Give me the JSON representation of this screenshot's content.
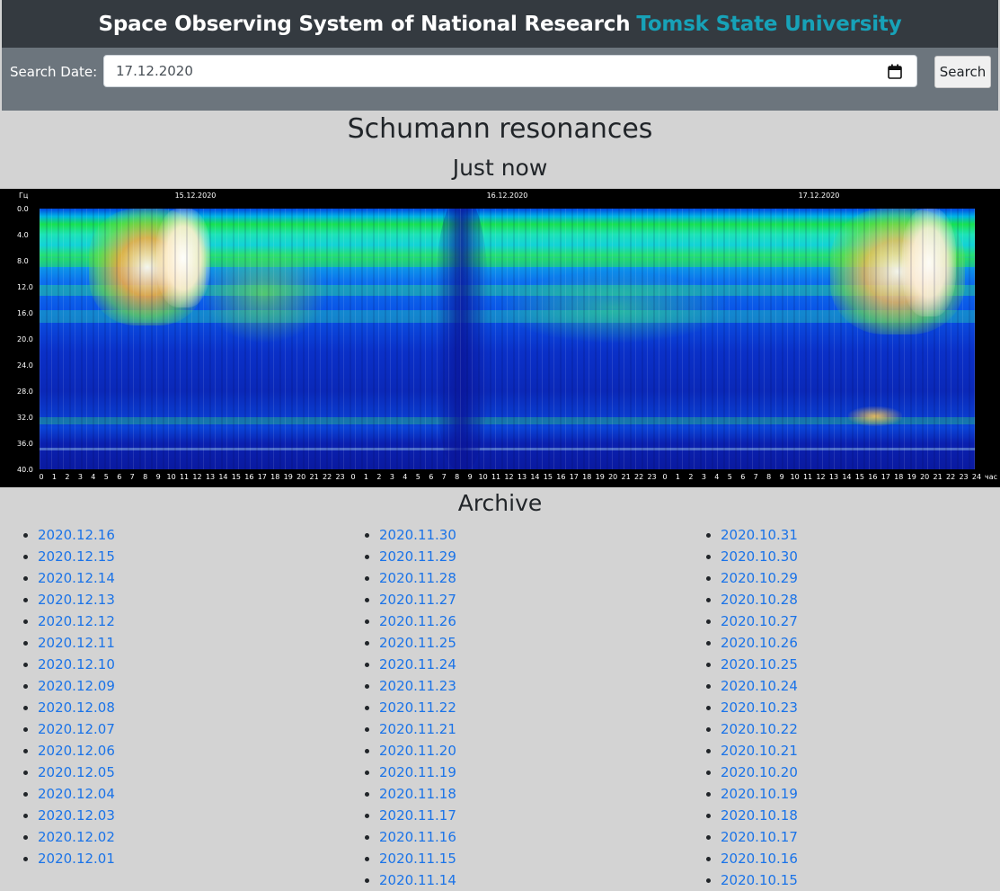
{
  "header": {
    "title_main": "Space Observing System of National Research",
    "title_accent": "Tomsk State University",
    "accent_color": "#17a2b8"
  },
  "search": {
    "label": "Search Date:",
    "date_value": "17.12.2020",
    "button_label": "Search"
  },
  "main": {
    "title": "Schumann resonances",
    "subtitle": "Just now"
  },
  "spectrogram": {
    "unit_y": "Гц",
    "unit_x": "час",
    "dates": [
      "15.12.2020",
      "16.12.2020",
      "17.12.2020"
    ],
    "y_ticks": [
      "0.0",
      "4.0",
      "8.0",
      "12.0",
      "16.0",
      "20.0",
      "24.0",
      "28.0",
      "32.0",
      "36.0",
      "40.0"
    ],
    "x_ticks": [
      "0",
      "1",
      "2",
      "3",
      "4",
      "5",
      "6",
      "7",
      "8",
      "9",
      "10",
      "11",
      "12",
      "13",
      "14",
      "15",
      "16",
      "17",
      "18",
      "19",
      "20",
      "21",
      "22",
      "23",
      "0",
      "1",
      "2",
      "3",
      "4",
      "5",
      "6",
      "7",
      "8",
      "9",
      "10",
      "11",
      "12",
      "13",
      "14",
      "15",
      "16",
      "17",
      "18",
      "19",
      "20",
      "21",
      "22",
      "23",
      "0",
      "1",
      "2",
      "3",
      "4",
      "5",
      "6",
      "7",
      "8",
      "9",
      "10",
      "11",
      "12",
      "13",
      "14",
      "15",
      "16",
      "17",
      "18",
      "19",
      "20",
      "21",
      "22",
      "23",
      "24"
    ],
    "colors": {
      "low": "#0a1aa0",
      "mid": "#00b4e6",
      "high": "#18e050",
      "peak": "#ffffff"
    }
  },
  "archive": {
    "title": "Archive",
    "columns": [
      [
        "2020.12.16",
        "2020.12.15",
        "2020.12.14",
        "2020.12.13",
        "2020.12.12",
        "2020.12.11",
        "2020.12.10",
        "2020.12.09",
        "2020.12.08",
        "2020.12.07",
        "2020.12.06",
        "2020.12.05",
        "2020.12.04",
        "2020.12.03",
        "2020.12.02",
        "2020.12.01"
      ],
      [
        "2020.11.30",
        "2020.11.29",
        "2020.11.28",
        "2020.11.27",
        "2020.11.26",
        "2020.11.25",
        "2020.11.24",
        "2020.11.23",
        "2020.11.22",
        "2020.11.21",
        "2020.11.20",
        "2020.11.19",
        "2020.11.18",
        "2020.11.17",
        "2020.11.16",
        "2020.11.15",
        "2020.11.14"
      ],
      [
        "2020.10.31",
        "2020.10.30",
        "2020.10.29",
        "2020.10.28",
        "2020.10.27",
        "2020.10.26",
        "2020.10.25",
        "2020.10.24",
        "2020.10.23",
        "2020.10.22",
        "2020.10.21",
        "2020.10.20",
        "2020.10.19",
        "2020.10.18",
        "2020.10.17",
        "2020.10.16",
        "2020.10.15"
      ]
    ]
  }
}
